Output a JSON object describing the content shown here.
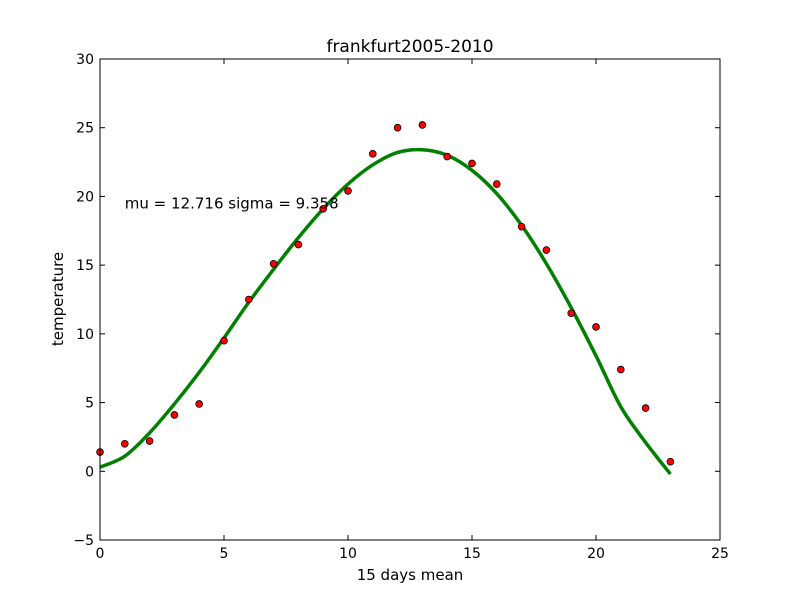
{
  "chart_data": {
    "type": "scatter",
    "title": "frankfurt2005-2010",
    "xlabel": "15 days mean",
    "ylabel": "temperature",
    "xlim": [
      0,
      25
    ],
    "ylim": [
      -5,
      30
    ],
    "xticks": [
      0,
      5,
      10,
      15,
      20,
      25
    ],
    "yticks": [
      -5,
      0,
      5,
      10,
      15,
      20,
      25,
      30
    ],
    "grid": false,
    "annotation": {
      "text": "mu = 12.716 sigma = 9.358",
      "x": 1,
      "y": 19.5
    },
    "series": [
      {
        "kind": "points",
        "color": "#ff0000",
        "edge_color": "#000000",
        "x": [
          0,
          1,
          2,
          3,
          4,
          5,
          6,
          7,
          8,
          9,
          10,
          11,
          12,
          13,
          14,
          15,
          16,
          17,
          18,
          19,
          20,
          21,
          22,
          23
        ],
        "y": [
          1.4,
          2.0,
          2.2,
          4.1,
          4.9,
          9.5,
          12.5,
          15.1,
          16.5,
          19.1,
          20.4,
          23.1,
          25.0,
          25.2,
          22.9,
          22.4,
          20.9,
          17.8,
          16.1,
          11.5,
          10.5,
          7.4,
          4.6,
          0.7
        ]
      },
      {
        "kind": "fit-curve",
        "color": "#008000",
        "x": [
          0,
          1,
          2,
          3,
          4,
          5,
          6,
          7,
          8,
          9,
          10,
          11,
          12,
          13,
          14,
          15,
          16,
          17,
          18,
          19,
          20,
          21,
          22,
          23
        ],
        "y": [
          0.3,
          1.1,
          2.8,
          4.9,
          7.2,
          9.7,
          12.3,
          14.7,
          17.0,
          19.1,
          20.9,
          22.3,
          23.2,
          23.4,
          23.0,
          21.9,
          20.2,
          17.9,
          15.1,
          11.9,
          8.4,
          4.7,
          2.1,
          -0.2
        ]
      }
    ]
  }
}
